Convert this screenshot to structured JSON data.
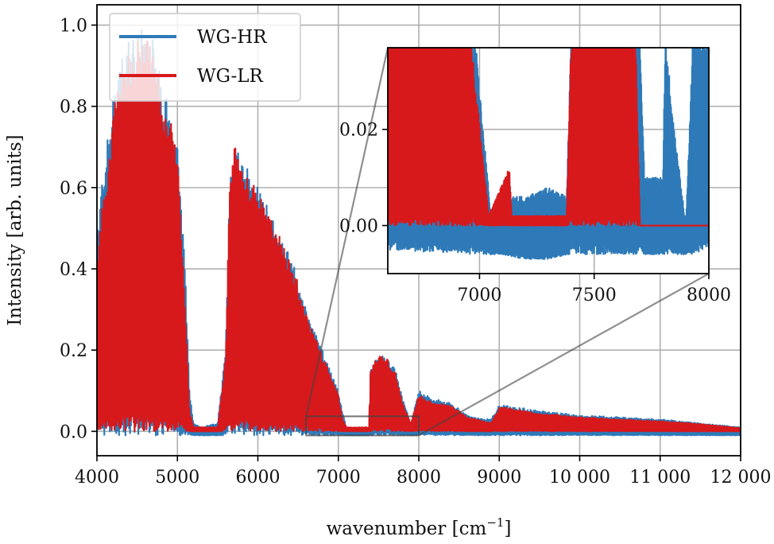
{
  "chart_data": {
    "type": "line",
    "title": "",
    "xlabel": "wavenumber [cm",
    "xlabel_sup": "−1",
    "xlabel_end": "]",
    "ylabel": "Intensity [arb. units]",
    "xlim": [
      4000,
      12000
    ],
    "ylim": [
      -0.06,
      1.05
    ],
    "grid": true,
    "legend_position": "top-left",
    "x_ticks": [
      {
        "v": 4000,
        "label": "4000"
      },
      {
        "v": 5000,
        "label": "5000"
      },
      {
        "v": 6000,
        "label": "6000"
      },
      {
        "v": 7000,
        "label": "7000"
      },
      {
        "v": 8000,
        "label": "8000"
      },
      {
        "v": 9000,
        "label": "9000"
      },
      {
        "v": 10000,
        "label": "10 000"
      },
      {
        "v": 11000,
        "label": "11 000"
      },
      {
        "v": 12000,
        "label": "12 000"
      }
    ],
    "y_ticks": [
      {
        "v": 0.0,
        "label": "0.0"
      },
      {
        "v": 0.2,
        "label": "0.2"
      },
      {
        "v": 0.4,
        "label": "0.4"
      },
      {
        "v": 0.6,
        "label": "0.6"
      },
      {
        "v": 0.8,
        "label": "0.8"
      },
      {
        "v": 1.0,
        "label": "1.0"
      }
    ],
    "series": [
      {
        "name": "WG-HR",
        "color": "#2e7ab8",
        "envelope": [
          [
            4000,
            0.0,
            0.48
          ],
          [
            4050,
            -0.01,
            0.62
          ],
          [
            4100,
            -0.01,
            0.67
          ],
          [
            4150,
            -0.01,
            0.75
          ],
          [
            4200,
            -0.01,
            0.84
          ],
          [
            4300,
            -0.01,
            0.91
          ],
          [
            4400,
            -0.01,
            0.96
          ],
          [
            4500,
            -0.01,
            0.99
          ],
          [
            4600,
            -0.01,
            1.0
          ],
          [
            4700,
            -0.01,
            0.98
          ],
          [
            4750,
            -0.01,
            0.92
          ],
          [
            4800,
            -0.01,
            0.84
          ],
          [
            4900,
            -0.01,
            0.82
          ],
          [
            5000,
            -0.01,
            0.72
          ],
          [
            5050,
            -0.01,
            0.55
          ],
          [
            5100,
            -0.01,
            0.38
          ],
          [
            5150,
            -0.01,
            0.1
          ],
          [
            5200,
            -0.01,
            0.02
          ],
          [
            5300,
            -0.01,
            0.01
          ],
          [
            5500,
            -0.01,
            0.02
          ],
          [
            5600,
            -0.01,
            0.2
          ],
          [
            5650,
            -0.01,
            0.64
          ],
          [
            5700,
            -0.01,
            0.72
          ],
          [
            5800,
            -0.01,
            0.68
          ],
          [
            6000,
            -0.01,
            0.6
          ],
          [
            6200,
            -0.01,
            0.52
          ],
          [
            6400,
            -0.01,
            0.43
          ],
          [
            6500,
            -0.01,
            0.38
          ],
          [
            6600,
            -0.01,
            0.3
          ],
          [
            6700,
            -0.01,
            0.25
          ],
          [
            6800,
            -0.01,
            0.2
          ],
          [
            6900,
            -0.01,
            0.15
          ],
          [
            7000,
            -0.01,
            0.1
          ],
          [
            7050,
            -0.01,
            0.05
          ],
          [
            7100,
            -0.01,
            0.01
          ],
          [
            7300,
            -0.01,
            0.005
          ],
          [
            7380,
            -0.01,
            0.01
          ],
          [
            7400,
            -0.01,
            0.15
          ],
          [
            7500,
            -0.01,
            0.19
          ],
          [
            7600,
            -0.01,
            0.18
          ],
          [
            7700,
            -0.01,
            0.16
          ],
          [
            7800,
            -0.01,
            0.08
          ],
          [
            7900,
            -0.01,
            0.02
          ],
          [
            8000,
            -0.01,
            0.1
          ],
          [
            8200,
            -0.01,
            0.08
          ],
          [
            8400,
            -0.01,
            0.07
          ],
          [
            8600,
            -0.01,
            0.04
          ],
          [
            8800,
            -0.01,
            0.03
          ],
          [
            8900,
            -0.01,
            0.03
          ],
          [
            9000,
            -0.01,
            0.065
          ],
          [
            9200,
            -0.01,
            0.06
          ],
          [
            9500,
            -0.01,
            0.05
          ],
          [
            10000,
            -0.01,
            0.04
          ],
          [
            10500,
            -0.01,
            0.035
          ],
          [
            11000,
            -0.01,
            0.03
          ],
          [
            11500,
            -0.01,
            0.02
          ],
          [
            12000,
            -0.01,
            0.01
          ]
        ]
      },
      {
        "name": "WG-LR",
        "color": "#d7191c",
        "envelope": [
          [
            4000,
            0.0,
            0.4
          ],
          [
            4050,
            0.0,
            0.55
          ],
          [
            4100,
            0.0,
            0.6
          ],
          [
            4150,
            0.0,
            0.68
          ],
          [
            4200,
            0.0,
            0.8
          ],
          [
            4300,
            0.0,
            0.88
          ],
          [
            4400,
            0.0,
            0.93
          ],
          [
            4500,
            0.0,
            0.96
          ],
          [
            4600,
            0.0,
            0.97
          ],
          [
            4700,
            0.0,
            0.95
          ],
          [
            4750,
            0.0,
            0.88
          ],
          [
            4800,
            0.0,
            0.8
          ],
          [
            4900,
            0.0,
            0.78
          ],
          [
            5000,
            0.0,
            0.68
          ],
          [
            5050,
            0.0,
            0.5
          ],
          [
            5100,
            0.0,
            0.3
          ],
          [
            5150,
            0.0,
            0.05
          ],
          [
            5200,
            0.0,
            0.01
          ],
          [
            5500,
            0.0,
            0.01
          ],
          [
            5600,
            0.0,
            0.18
          ],
          [
            5650,
            0.0,
            0.66
          ],
          [
            5700,
            0.0,
            0.71
          ],
          [
            5800,
            0.0,
            0.67
          ],
          [
            6000,
            0.0,
            0.59
          ],
          [
            6200,
            0.0,
            0.51
          ],
          [
            6400,
            0.0,
            0.42
          ],
          [
            6500,
            0.0,
            0.37
          ],
          [
            6600,
            0.0,
            0.29
          ],
          [
            6700,
            0.0,
            0.24
          ],
          [
            6800,
            0.0,
            0.19
          ],
          [
            6900,
            0.0,
            0.14
          ],
          [
            7000,
            0.0,
            0.09
          ],
          [
            7050,
            0.0,
            0.03
          ],
          [
            7100,
            0.0,
            0.01
          ],
          [
            7380,
            0.0,
            0.01
          ],
          [
            7400,
            0.0,
            0.15
          ],
          [
            7500,
            0.0,
            0.19
          ],
          [
            7600,
            0.0,
            0.18
          ],
          [
            7700,
            0.0,
            0.15
          ],
          [
            7800,
            0.0,
            0.07
          ],
          [
            7900,
            0.0,
            0.02
          ],
          [
            8000,
            0.0,
            0.09
          ],
          [
            8200,
            0.0,
            0.07
          ],
          [
            8400,
            0.0,
            0.065
          ],
          [
            8600,
            0.0,
            0.035
          ],
          [
            8800,
            0.0,
            0.025
          ],
          [
            8900,
            0.0,
            0.02
          ],
          [
            9000,
            0.0,
            0.06
          ],
          [
            9200,
            0.0,
            0.055
          ],
          [
            9500,
            0.0,
            0.045
          ],
          [
            10000,
            0.0,
            0.035
          ],
          [
            10500,
            0.0,
            0.03
          ],
          [
            11000,
            0.0,
            0.025
          ],
          [
            11500,
            0.0,
            0.018
          ],
          [
            12000,
            0.0,
            0.008
          ]
        ]
      }
    ],
    "inset": {
      "xlim": [
        6600,
        8000
      ],
      "ylim": [
        -0.01,
        0.037
      ],
      "x_ticks": [
        {
          "v": 7000,
          "label": "7000"
        },
        {
          "v": 7500,
          "label": "7500"
        },
        {
          "v": 8000,
          "label": "8000"
        }
      ],
      "y_ticks": [
        {
          "v": 0.0,
          "label": "0.00"
        },
        {
          "v": 0.02,
          "label": "0.02"
        }
      ],
      "grid": true,
      "series": [
        {
          "name": "WG-HR",
          "color": "#2e7ab8",
          "envelope": [
            [
              6600,
              -0.005,
              0.04
            ],
            [
              6980,
              -0.006,
              0.04
            ],
            [
              7050,
              -0.006,
              0.002
            ],
            [
              7100,
              -0.006,
              0.006
            ],
            [
              7200,
              -0.007,
              0.006
            ],
            [
              7300,
              -0.007,
              0.008
            ],
            [
              7380,
              -0.006,
              0.006
            ],
            [
              7400,
              -0.006,
              0.04
            ],
            [
              7700,
              -0.006,
              0.04
            ],
            [
              7720,
              -0.006,
              0.01
            ],
            [
              7800,
              -0.006,
              0.01
            ],
            [
              7810,
              -0.006,
              0.04
            ],
            [
              7850,
              -0.006,
              0.02
            ],
            [
              7900,
              -0.006,
              0.0
            ],
            [
              7930,
              -0.006,
              0.04
            ],
            [
              8000,
              -0.005,
              0.04
            ]
          ]
        },
        {
          "name": "WG-LR",
          "color": "#d7191c",
          "envelope": [
            [
              6600,
              0.0,
              0.04
            ],
            [
              6960,
              0.0,
              0.04
            ],
            [
              7040,
              0.0,
              0.002
            ],
            [
              7130,
              0.0,
              0.012
            ],
            [
              7140,
              0.0,
              0.002
            ],
            [
              7380,
              0.0,
              0.002
            ],
            [
              7400,
              0.0,
              0.04
            ],
            [
              7680,
              0.0,
              0.04
            ],
            [
              7700,
              0.0,
              0.0
            ]
          ]
        }
      ]
    }
  }
}
